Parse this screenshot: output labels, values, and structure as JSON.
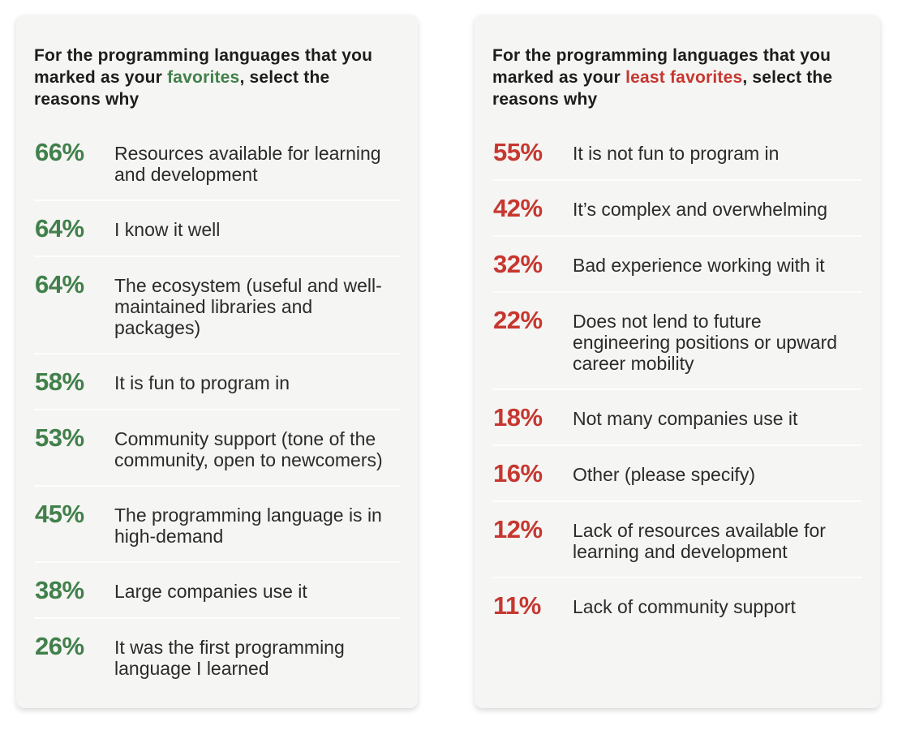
{
  "colors": {
    "card_bg": "#f5f5f3",
    "divider": "#fdfdfc",
    "favorites_accent": "#41804B",
    "least_favorites_accent": "#C63730"
  },
  "panels": [
    {
      "id": "favorites",
      "accent_color": "#41804B",
      "title": {
        "prefix": "For the programming languages that you marked as your ",
        "highlight": "favorites",
        "suffix": ", select the reasons why"
      },
      "rows": [
        {
          "percent": "66%",
          "reason": "Resources available for learning and development"
        },
        {
          "percent": "64%",
          "reason": "I know it well"
        },
        {
          "percent": "64%",
          "reason": "The ecosystem (useful and well-maintained libraries and packages)"
        },
        {
          "percent": "58%",
          "reason": "It is fun to program in"
        },
        {
          "percent": "53%",
          "reason": "Community support (tone of the community, open to newcomers)"
        },
        {
          "percent": "45%",
          "reason": "The programming language is in high-demand"
        },
        {
          "percent": "38%",
          "reason": "Large companies use it"
        },
        {
          "percent": "26%",
          "reason": "It was the first programming language I learned"
        }
      ]
    },
    {
      "id": "least-favorites",
      "accent_color": "#C63730",
      "title": {
        "prefix": "For the programming languages that you marked as your ",
        "highlight": "least favorites",
        "suffix": ", select the reasons why"
      },
      "rows": [
        {
          "percent": "55%",
          "reason": "It is not fun to program in"
        },
        {
          "percent": "42%",
          "reason": "It’s complex and overwhelming"
        },
        {
          "percent": "32%",
          "reason": "Bad experience working with it"
        },
        {
          "percent": "22%",
          "reason": "Does not lend to future engineering positions or upward career mobility"
        },
        {
          "percent": "18%",
          "reason": "Not many companies use it"
        },
        {
          "percent": "16%",
          "reason": "Other (please specify)"
        },
        {
          "percent": "12%",
          "reason": "Lack of resources available for learning and development"
        },
        {
          "percent": "11%",
          "reason": "Lack of community support"
        }
      ]
    }
  ],
  "chart_data": [
    {
      "type": "table",
      "title": "For the programming languages that you marked as your favorites, select the reasons why",
      "categories": [
        "Resources available for learning and development",
        "I know it well",
        "The ecosystem (useful and well-maintained libraries and packages)",
        "It is fun to program in",
        "Community support (tone of the community, open to newcomers)",
        "The programming language is in high-demand",
        "Large companies use it",
        "It was the first programming language I learned"
      ],
      "values": [
        66,
        64,
        64,
        58,
        53,
        45,
        38,
        26
      ],
      "unit": "%",
      "accent_color": "#41804B"
    },
    {
      "type": "table",
      "title": "For the programming languages that you marked as your least favorites, select the reasons why",
      "categories": [
        "It is not fun to program in",
        "It’s complex and overwhelming",
        "Bad experience working with it",
        "Does not lend to future engineering positions or upward career mobility",
        "Not many companies use it",
        "Other (please specify)",
        "Lack of resources available for learning and development",
        "Lack of community support"
      ],
      "values": [
        55,
        42,
        32,
        22,
        18,
        16,
        12,
        11
      ],
      "unit": "%",
      "accent_color": "#C63730"
    }
  ]
}
